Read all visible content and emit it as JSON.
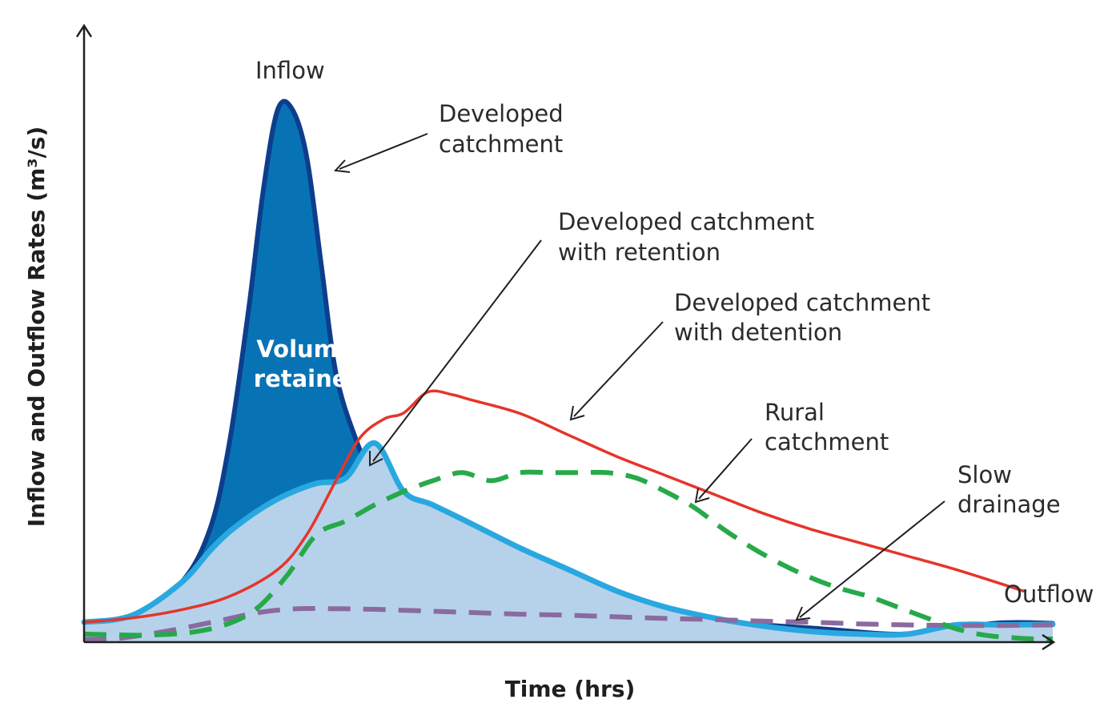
{
  "chart_data": {
    "type": "area",
    "title": "",
    "xlabel": "Time (hrs)",
    "ylabel": "Inflow and Outflow Rates (m³/s)",
    "x_tick_labels": [],
    "y_tick_labels": [],
    "grid": false,
    "legend": "none",
    "x_range": [
      0,
      100
    ],
    "y_range": [
      0,
      100
    ],
    "series": [
      {
        "key": "developed",
        "style": "filled-area",
        "color": "#0873b4",
        "outline": "#0d3e8c",
        "x": [
          0,
          5,
          10,
          13,
          15,
          17,
          18.5,
          20,
          21.5,
          23,
          24.5,
          26,
          28,
          30,
          32.5,
          35,
          38,
          42,
          47,
          53,
          60,
          68,
          76,
          85,
          94,
          100
        ],
        "y": [
          3.7,
          5,
          11,
          21,
          37,
          62,
          84,
          99,
          99,
          90,
          70,
          50,
          38,
          30,
          24.5,
          20,
          16,
          12,
          9.5,
          7,
          5,
          3.5,
          2.5,
          1.5,
          3.5,
          3.5
        ]
      },
      {
        "key": "retention",
        "style": "filled-area",
        "color": "#b6d2ea",
        "outline": "#29a8e0",
        "x": [
          0,
          5,
          10,
          13,
          15,
          18,
          21,
          24,
          27,
          30,
          33,
          36,
          40,
          45,
          50,
          55,
          60,
          65,
          70,
          75,
          80,
          85,
          90,
          95,
          100
        ],
        "y": [
          3.7,
          5,
          11,
          17,
          20.5,
          24.5,
          27.5,
          29.5,
          30.5,
          37,
          28,
          25.5,
          22,
          17.5,
          13.5,
          9.5,
          6.5,
          4.5,
          3,
          2,
          1.5,
          1.5,
          3.2,
          3.2,
          3.3
        ]
      },
      {
        "key": "detention",
        "style": "solid",
        "color": "#e5352b",
        "x": [
          0,
          5,
          10,
          15,
          20,
          23,
          26,
          28.5,
          31,
          33,
          35.5,
          38,
          40,
          45,
          50,
          55,
          60,
          65,
          70,
          75,
          80,
          85,
          90,
          97
        ],
        "y": [
          3.7,
          4.5,
          6,
          8.5,
          13.5,
          20,
          30,
          38,
          41.5,
          42.6,
          46.5,
          46,
          45,
          42.5,
          38.5,
          34.5,
          31,
          27.5,
          24,
          21,
          18.5,
          16,
          13.5,
          9.5
        ]
      },
      {
        "key": "rural",
        "style": "dashed",
        "color": "#27a94a",
        "x": [
          0,
          6,
          11,
          15,
          18,
          21,
          24,
          27,
          30,
          33,
          36,
          39,
          42,
          45,
          48,
          51,
          54,
          57,
          60,
          63,
          66,
          69,
          72,
          75,
          78,
          81,
          84,
          87,
          90,
          93,
          96,
          98,
          100
        ],
        "y": [
          1.5,
          1.3,
          1.8,
          3.5,
          6.5,
          12.5,
          20,
          22.5,
          25.5,
          28,
          30,
          31.5,
          30,
          31.5,
          31.5,
          31.5,
          31.5,
          30.5,
          28,
          25,
          21,
          17.5,
          14.5,
          12,
          10,
          8.5,
          6.5,
          4.5,
          2.5,
          1.3,
          0.8,
          0.6,
          0.6
        ]
      },
      {
        "key": "slow",
        "style": "dashed",
        "color": "#8a6a9f",
        "x": [
          0,
          4,
          9,
          14,
          18,
          22,
          26,
          30,
          35,
          40,
          45,
          50,
          55,
          60,
          65,
          70,
          75,
          80,
          85,
          90,
          95,
          100
        ],
        "y": [
          0.5,
          0.8,
          2.2,
          4,
          5.5,
          6.2,
          6.2,
          6.1,
          5.8,
          5.5,
          5.2,
          5,
          4.7,
          4.4,
          4.2,
          3.9,
          3.7,
          3.4,
          3.2,
          3.1,
          3.1,
          3.2
        ]
      }
    ],
    "annotations": [
      {
        "key": "inflow",
        "lines": [
          "Inflow"
        ]
      },
      {
        "key": "developed",
        "lines": [
          "Developed",
          "catchment"
        ]
      },
      {
        "key": "retention",
        "lines": [
          "Developed catchment",
          "with retention"
        ]
      },
      {
        "key": "detention",
        "lines": [
          "Developed catchment",
          "with detention"
        ]
      },
      {
        "key": "rural",
        "lines": [
          "Rural",
          "catchment"
        ]
      },
      {
        "key": "slow",
        "lines": [
          "Slow",
          "drainage"
        ]
      },
      {
        "key": "outflow",
        "lines": [
          "Outflow"
        ]
      },
      {
        "key": "volume",
        "lines": [
          "Volume",
          "retained"
        ]
      }
    ],
    "colors": {
      "axis": "#1f1f1f",
      "label_text": "#2b2b2b",
      "inner_text": "#ffffff",
      "arrow": "#1f1f1f"
    }
  }
}
